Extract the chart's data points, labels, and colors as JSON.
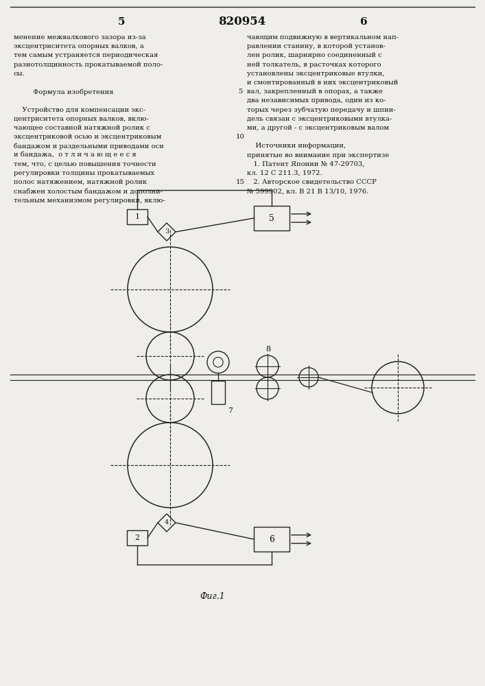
{
  "page_number_left": "5",
  "page_number_center": "820954",
  "page_number_right": "6",
  "left_col_lines": [
    "менение межвалкового зазора из-за",
    "эксцентриситета опорных валков, а",
    "тем самым устраняется периодическая",
    "разнотолщинность прокатываемой поло-",
    "сы.",
    "",
    "         Формула изобретения",
    "",
    "    Устройство для компенсации экс-",
    "центриситета опорных валков, вклю-",
    "чающее составной натяжной ролик с",
    "эксцентриковой осью и эксцентриковым",
    "бандажом и раздельными приводами оси",
    "и бандажа,  о т л и ч а ю щ е е с я",
    "тем, что, с целью повышения точности",
    "регулировки толщины прокатываемых",
    "полос натяжением, натяжной ролик",
    "снабжен холостым бандажом и дополни-",
    "тельным механизмом регулировки, вклю-"
  ],
  "right_col_lines": [
    "чающим подвижную в вертикальном нап-",
    "равлении станину, в которой установ-",
    "лен ролик, шарнирно соединенный с",
    "ней толкатель, в расточках которого",
    "установлены эксцентриковые втулки,",
    "и смонтированный в них эксцентриковый",
    "вал, закрепленный в опорах, а также",
    "два независимых привода, один из ко-",
    "торых через зубчатую передачу и шпин-",
    "дель связан с эксцентриковыми втулка-",
    "ми, а другой - с эксцентриковым валом",
    "",
    "    Источники информации,",
    "принятые во внимание при экспертизе",
    "   1. Патент Японии № 47-29703,",
    "кл. 12 С 211.3, 1972.",
    "   2. Авторское свидетельство СССР",
    "№ 599902, кл. В 21 В 13/10, 1976."
  ],
  "line_numbers": [
    [
      "5",
      6
    ],
    [
      "10",
      11
    ],
    [
      "15",
      16
    ]
  ],
  "fig_caption": "Фиг.1",
  "bg": "#f0eeea",
  "tc": "#111111",
  "dc": "#222222"
}
